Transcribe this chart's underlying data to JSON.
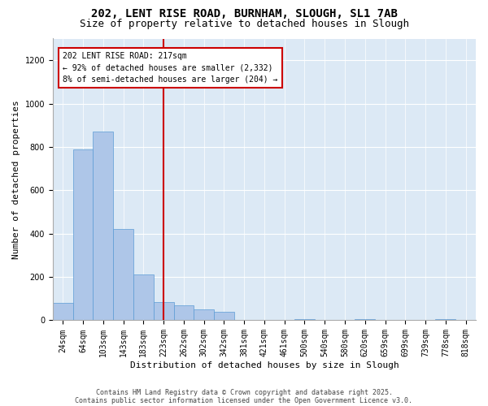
{
  "title_line1": "202, LENT RISE ROAD, BURNHAM, SLOUGH, SL1 7AB",
  "title_line2": "Size of property relative to detached houses in Slough",
  "xlabel": "Distribution of detached houses by size in Slough",
  "ylabel": "Number of detached properties",
  "categories": [
    "24sqm",
    "64sqm",
    "103sqm",
    "143sqm",
    "183sqm",
    "223sqm",
    "262sqm",
    "302sqm",
    "342sqm",
    "381sqm",
    "421sqm",
    "461sqm",
    "500sqm",
    "540sqm",
    "580sqm",
    "620sqm",
    "659sqm",
    "699sqm",
    "739sqm",
    "778sqm",
    "818sqm"
  ],
  "values": [
    80,
    790,
    870,
    420,
    210,
    85,
    70,
    50,
    40,
    0,
    0,
    0,
    5,
    0,
    0,
    5,
    0,
    0,
    0,
    5,
    0
  ],
  "bar_color": "#aec6e8",
  "bar_edge_color": "#5b9bd5",
  "marker_index": 5,
  "marker_color": "#cc0000",
  "annotation_line1": "202 LENT RISE ROAD: 217sqm",
  "annotation_line2": "← 92% of detached houses are smaller (2,332)",
  "annotation_line3": "8% of semi-detached houses are larger (204) →",
  "annotation_box_color": "#cc0000",
  "ylim": [
    0,
    1300
  ],
  "yticks": [
    0,
    200,
    400,
    600,
    800,
    1000,
    1200
  ],
  "background_color": "#dce9f5",
  "footer_line1": "Contains HM Land Registry data © Crown copyright and database right 2025.",
  "footer_line2": "Contains public sector information licensed under the Open Government Licence v3.0.",
  "title_fontsize": 10,
  "subtitle_fontsize": 9,
  "axis_label_fontsize": 8,
  "tick_fontsize": 7,
  "annotation_fontsize": 7,
  "footer_fontsize": 6
}
